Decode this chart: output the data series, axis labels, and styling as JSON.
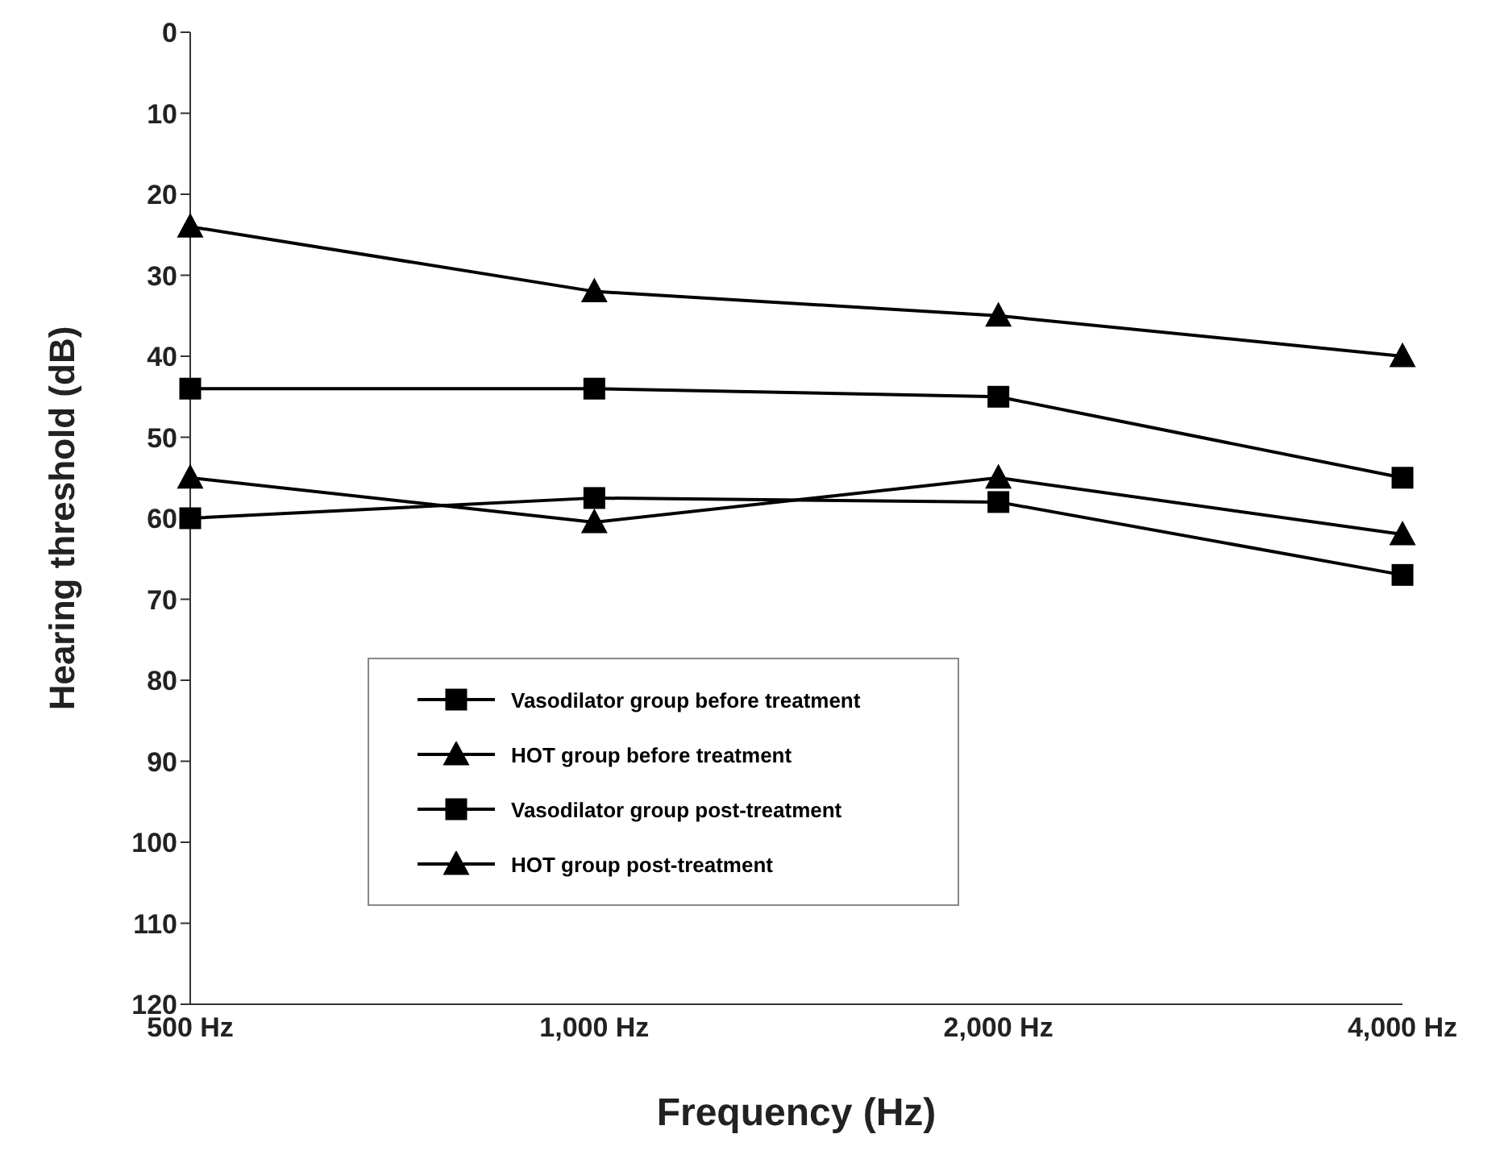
{
  "chart_data": {
    "type": "line",
    "xlabel": "Frequency (Hz)",
    "ylabel": "Hearing threshold (dB)",
    "categories": [
      "500 Hz",
      "1,000 Hz",
      "2,000 Hz",
      "4,000 Hz"
    ],
    "series": [
      {
        "name": "Vasodilator group before treatment",
        "color": "#000000",
        "marker": "square",
        "values": [
          60,
          57.5,
          58,
          67
        ]
      },
      {
        "name": "HOT group before treatment",
        "color": "#000000",
        "marker": "triangle",
        "values": [
          55,
          60.5,
          55,
          62
        ]
      },
      {
        "name": "Vasodilator group post-treatment",
        "color": "#000000",
        "marker": "square",
        "values": [
          44,
          44,
          45,
          55
        ]
      },
      {
        "name": "HOT group post-treatment",
        "color": "#000000",
        "marker": "triangle",
        "values": [
          24,
          32,
          35,
          40
        ]
      }
    ],
    "ylim": [
      120,
      0
    ],
    "yticks": [
      0,
      10,
      20,
      30,
      40,
      50,
      60,
      70,
      80,
      90,
      100,
      110,
      120
    ],
    "grid": false,
    "legend": "bottom left",
    "line_style": "solid"
  }
}
